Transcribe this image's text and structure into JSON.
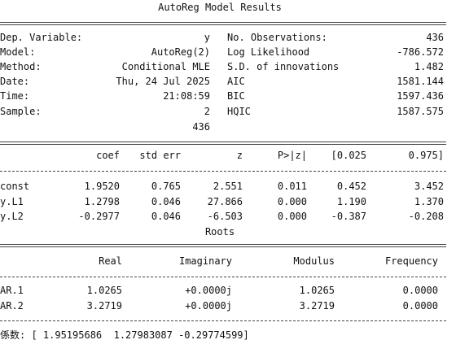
{
  "title": "AutoReg Model Results",
  "info": {
    "left": [
      {
        "label": "Dep. Variable:",
        "value": "y"
      },
      {
        "label": "Model:",
        "value": "AutoReg(2)"
      },
      {
        "label": "Method:",
        "value": "Conditional MLE"
      },
      {
        "label": "Date:",
        "value": "Thu, 24 Jul 2025"
      },
      {
        "label": "Time:",
        "value": "21:08:59"
      },
      {
        "label": "Sample:",
        "value": "2"
      },
      {
        "value": "436"
      }
    ],
    "right": [
      {
        "label": "No. Observations:",
        "value": "436"
      },
      {
        "label": "Log Likelihood",
        "value": "-786.572"
      },
      {
        "label": "S.D. of innovations",
        "value": "1.482"
      },
      {
        "label": "AIC",
        "value": "1581.144"
      },
      {
        "label": "BIC",
        "value": "1597.436"
      },
      {
        "label": "HQIC",
        "value": "1587.575"
      }
    ]
  },
  "coef_table": {
    "header": [
      "coef",
      "std err",
      "z",
      "P>|z|",
      "[0.025",
      "0.975]"
    ],
    "rows": [
      [
        "const",
        "1.9520",
        "0.765",
        "2.551",
        "0.011",
        "0.452",
        "3.452"
      ],
      [
        "y.L1",
        "1.2798",
        "0.046",
        "27.866",
        "0.000",
        "1.190",
        "1.370"
      ],
      [
        "y.L2",
        "-0.2977",
        "0.046",
        "-6.503",
        "0.000",
        "-0.387",
        "-0.208"
      ]
    ]
  },
  "roots": {
    "title": "Roots",
    "header": [
      "Real",
      "Imaginary",
      "Modulus",
      "Frequency"
    ],
    "rows": [
      [
        "AR.1",
        "1.0265",
        "+0.0000j",
        "1.0265",
        "0.0000"
      ],
      [
        "AR.2",
        "3.2719",
        "+0.0000j",
        "3.2719",
        "0.0000"
      ]
    ]
  },
  "footer": "係数: [ 1.95195686  1.27983087 -0.29774599]"
}
